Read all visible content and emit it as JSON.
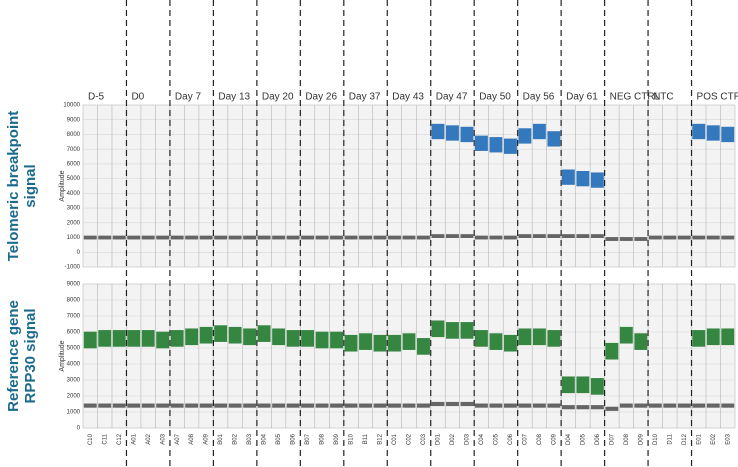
{
  "chart_data": [
    {
      "type": "droplet",
      "title_lines": [
        "Telomeric breakpoint",
        "signal"
      ],
      "ylabel": "Amplitude",
      "groups": [
        "D-5",
        "D0",
        "Day 7",
        "Day 13",
        "Day 20",
        "Day 26",
        "Day 37",
        "Day 43",
        "Day 47",
        "Day 50",
        "Day 56",
        "Day 61",
        "NEG CTRL",
        "NTC",
        "POS CTRL"
      ],
      "ylim": [
        -1000,
        10000
      ],
      "yticks": [
        -1000,
        0,
        1000,
        2000,
        3000,
        4000,
        5000,
        6000,
        7000,
        8000,
        9000,
        10000
      ],
      "series": [
        {
          "color": "#1f6cb8",
          "values": [
            null,
            null,
            null,
            null,
            null,
            null,
            null,
            null,
            null,
            null,
            null,
            null,
            null,
            null,
            null,
            null,
            null,
            null,
            null,
            null,
            null,
            null,
            null,
            null,
            8200,
            8100,
            8000,
            7400,
            7300,
            7200,
            7900,
            8200,
            7700,
            5100,
            5000,
            4900,
            null,
            null,
            null,
            null,
            null,
            null,
            8200,
            8100,
            8000
          ]
        },
        {
          "color": "#555555",
          "values": [
            1000,
            1000,
            1000,
            1000,
            1000,
            1000,
            1000,
            1000,
            1000,
            1000,
            1000,
            1000,
            1000,
            1000,
            1000,
            1000,
            1000,
            1000,
            1000,
            1000,
            1000,
            1000,
            1000,
            1000,
            1100,
            1100,
            1100,
            1000,
            1000,
            1000,
            1100,
            1100,
            1100,
            1100,
            1100,
            1100,
            900,
            900,
            900,
            1000,
            1000,
            1000,
            1000,
            1000,
            1000
          ]
        }
      ]
    },
    {
      "type": "droplet",
      "title_lines": [
        "Reference gene",
        "RPP30 signal"
      ],
      "ylabel": "Amplitude",
      "categories": [
        "C10",
        "C11",
        "C12",
        "A01",
        "A02",
        "A03",
        "A07",
        "A08",
        "A09",
        "B01",
        "B02",
        "B03",
        "B04",
        "B05",
        "B06",
        "B07",
        "B08",
        "B09",
        "B10",
        "B11",
        "B12",
        "C01",
        "C02",
        "C03",
        "D01",
        "D02",
        "D03",
        "C04",
        "C05",
        "C06",
        "C07",
        "C08",
        "C09",
        "D04",
        "D05",
        "D06",
        "D07",
        "D08",
        "D09",
        "D10",
        "D11",
        "D12",
        "E01",
        "E02",
        "E03"
      ],
      "ylim": [
        0,
        9000
      ],
      "yticks": [
        0,
        1000,
        2000,
        3000,
        4000,
        5000,
        6000,
        7000,
        8000,
        9000
      ],
      "series": [
        {
          "color": "#1f7a2c",
          "values": [
            5500,
            5600,
            5600,
            5600,
            5600,
            5500,
            5600,
            5700,
            5800,
            5900,
            5800,
            5700,
            5900,
            5700,
            5600,
            5600,
            5500,
            5500,
            5300,
            5400,
            5300,
            5300,
            5400,
            5100,
            6200,
            6100,
            6100,
            5600,
            5400,
            5300,
            5700,
            5700,
            5600,
            2700,
            2700,
            2600,
            4800,
            5800,
            5400,
            null,
            null,
            null,
            5600,
            5700,
            5700
          ]
        },
        {
          "color": "#555555",
          "values": [
            1400,
            1400,
            1400,
            1400,
            1400,
            1400,
            1400,
            1400,
            1400,
            1400,
            1400,
            1400,
            1400,
            1400,
            1400,
            1400,
            1400,
            1400,
            1400,
            1400,
            1400,
            1400,
            1400,
            1400,
            1500,
            1500,
            1500,
            1400,
            1400,
            1400,
            1400,
            1400,
            1400,
            1300,
            1300,
            1300,
            1200,
            1400,
            1400,
            1400,
            1400,
            1400,
            1400,
            1400,
            1400
          ]
        }
      ]
    }
  ]
}
